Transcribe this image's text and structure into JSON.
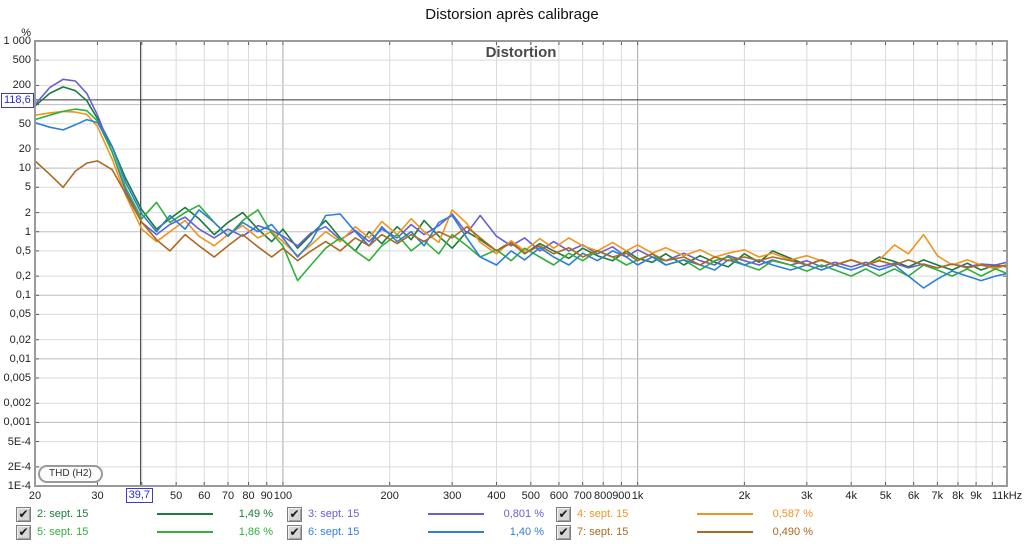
{
  "page": {
    "title": "Distorsion après calibrage"
  },
  "icons": {
    "checkmark": "✔"
  },
  "colors": {
    "grid_minor": "#dadada",
    "grid_major_x": "#a8a8a8",
    "grid_major_y": "#bdbdbd",
    "frame": "#9a9a9a",
    "crosshair": "#3a3a3a",
    "tick_stub": "#5a5a5a",
    "marker_blue": "#2a2ad4"
  },
  "chart_data": {
    "type": "line",
    "title": "Distortion",
    "y_unit": "%",
    "x_scale": "log",
    "y_scale": "log",
    "xlim": [
      20,
      11000
    ],
    "ylim": [
      0.0001,
      1000
    ],
    "grid": true,
    "legend_position": "bottom",
    "measurement_type_badge": "THD (H2)",
    "cursor": {
      "freq": 39.7,
      "freq_label": "39,7",
      "percent": 118.6,
      "percent_label": "118,6"
    },
    "x_ticks": [
      {
        "f": 20,
        "label": "20"
      },
      {
        "f": 30,
        "label": "30"
      },
      {
        "f": 40,
        "label": ""
      },
      {
        "f": 50,
        "label": "50"
      },
      {
        "f": 60,
        "label": "60"
      },
      {
        "f": 70,
        "label": "70"
      },
      {
        "f": 80,
        "label": "80"
      },
      {
        "f": 90,
        "label": "90"
      },
      {
        "f": 100,
        "label": "100"
      },
      {
        "f": 200,
        "label": "200"
      },
      {
        "f": 300,
        "label": "300"
      },
      {
        "f": 400,
        "label": "400"
      },
      {
        "f": 500,
        "label": "500"
      },
      {
        "f": 600,
        "label": "600"
      },
      {
        "f": 700,
        "label": "700"
      },
      {
        "f": 800,
        "label": "800"
      },
      {
        "f": 900,
        "label": "900"
      },
      {
        "f": 1000,
        "label": "1k"
      },
      {
        "f": 2000,
        "label": "2k"
      },
      {
        "f": 3000,
        "label": "3k"
      },
      {
        "f": 4000,
        "label": "4k"
      },
      {
        "f": 5000,
        "label": "5k"
      },
      {
        "f": 6000,
        "label": "6k"
      },
      {
        "f": 7000,
        "label": "7k"
      },
      {
        "f": 8000,
        "label": "8k"
      },
      {
        "f": 9000,
        "label": "9k"
      },
      {
        "f": 10000,
        "label": ""
      },
      {
        "f": 11000,
        "label": "11kHz"
      }
    ],
    "y_ticks": [
      {
        "v": 1000,
        "label": "1 000"
      },
      {
        "v": 500,
        "label": "500"
      },
      {
        "v": 200,
        "label": "200"
      },
      {
        "v": 100,
        "label": "100"
      },
      {
        "v": 50,
        "label": "50"
      },
      {
        "v": 20,
        "label": "20"
      },
      {
        "v": 10,
        "label": "10"
      },
      {
        "v": 5,
        "label": "5"
      },
      {
        "v": 2,
        "label": "2"
      },
      {
        "v": 1,
        "label": "1"
      },
      {
        "v": 0.5,
        "label": "0,5"
      },
      {
        "v": 0.2,
        "label": "0,2"
      },
      {
        "v": 0.1,
        "label": "0,1"
      },
      {
        "v": 0.05,
        "label": "0,05"
      },
      {
        "v": 0.02,
        "label": "0,02"
      },
      {
        "v": 0.01,
        "label": "0,01"
      },
      {
        "v": 0.005,
        "label": "0,005"
      },
      {
        "v": 0.002,
        "label": "0,002"
      },
      {
        "v": 0.001,
        "label": "0,001"
      },
      {
        "v": 0.0005,
        "label": "5E-4"
      },
      {
        "v": 0.0002,
        "label": "2E-4"
      },
      {
        "v": 0.0001,
        "label": "1E-4"
      }
    ],
    "x": [
      20,
      22,
      24,
      26,
      28,
      30,
      33,
      36,
      40,
      44,
      48,
      53,
      58,
      64,
      70,
      77,
      85,
      93,
      100,
      110,
      120,
      132,
      145,
      160,
      175,
      190,
      210,
      230,
      250,
      275,
      300,
      330,
      360,
      400,
      440,
      480,
      530,
      580,
      640,
      700,
      770,
      850,
      930,
      1000,
      1100,
      1200,
      1350,
      1500,
      1650,
      1800,
      2000,
      2200,
      2400,
      2700,
      3000,
      3300,
      3600,
      4000,
      4400,
      4800,
      5300,
      5800,
      6400,
      7000,
      7700,
      8500,
      9300,
      10200,
      11000
    ],
    "series": [
      {
        "name": "2: sept. 15",
        "thd": "1,49 %",
        "color": "#1c7c3a",
        "checked": true,
        "values": [
          95,
          150,
          190,
          165,
          115,
          60,
          22,
          7,
          2.2,
          1.1,
          1.6,
          2.4,
          1.6,
          0.9,
          1.4,
          2.0,
          1.1,
          0.7,
          1.1,
          0.55,
          0.9,
          1.5,
          0.8,
          0.5,
          1.0,
          0.65,
          1.2,
          0.75,
          1.5,
          0.85,
          0.55,
          1.0,
          0.75,
          0.5,
          0.7,
          0.45,
          0.65,
          0.5,
          0.38,
          0.55,
          0.42,
          0.35,
          0.5,
          0.38,
          0.33,
          0.45,
          0.3,
          0.42,
          0.33,
          0.28,
          0.45,
          0.33,
          0.5,
          0.38,
          0.3,
          0.36,
          0.3,
          0.36,
          0.3,
          0.4,
          0.34,
          0.28,
          0.36,
          0.3,
          0.25,
          0.32,
          0.25,
          0.3,
          0.28
        ]
      },
      {
        "name": "3: sept. 15",
        "thd": "0,801 %",
        "color": "#6a5fd0",
        "checked": true,
        "values": [
          100,
          185,
          250,
          235,
          150,
          68,
          18,
          4.5,
          1.4,
          0.9,
          1.3,
          1.7,
          1.1,
          0.8,
          1.1,
          0.85,
          1.25,
          1.05,
          0.85,
          0.6,
          0.95,
          1.2,
          0.75,
          1.05,
          0.7,
          1.1,
          0.8,
          1.3,
          0.9,
          1.25,
          1.9,
          0.95,
          1.8,
          0.85,
          0.6,
          0.8,
          0.5,
          0.7,
          0.5,
          0.62,
          0.45,
          0.58,
          0.4,
          0.52,
          0.4,
          0.35,
          0.46,
          0.35,
          0.3,
          0.42,
          0.35,
          0.3,
          0.36,
          0.3,
          0.35,
          0.28,
          0.33,
          0.28,
          0.33,
          0.28,
          0.32,
          0.27,
          0.31,
          0.27,
          0.31,
          0.28,
          0.31,
          0.3,
          0.33
        ]
      },
      {
        "name": "4: sept. 15",
        "thd": "0,587 %",
        "color": "#f0941f",
        "checked": true,
        "values": [
          68,
          74,
          78,
          76,
          70,
          45,
          14,
          3.8,
          1.1,
          0.7,
          1.0,
          1.5,
          0.85,
          0.6,
          0.9,
          1.25,
          0.8,
          1.0,
          0.7,
          0.42,
          0.62,
          1.0,
          0.7,
          1.2,
          0.8,
          1.45,
          0.9,
          1.6,
          1.0,
          0.68,
          2.2,
          1.35,
          0.68,
          0.45,
          0.72,
          0.5,
          0.78,
          0.55,
          0.8,
          0.6,
          0.5,
          0.68,
          0.5,
          0.62,
          0.46,
          0.56,
          0.42,
          0.52,
          0.4,
          0.46,
          0.52,
          0.4,
          0.46,
          0.36,
          0.42,
          0.35,
          0.3,
          0.36,
          0.3,
          0.36,
          0.62,
          0.45,
          0.9,
          0.42,
          0.3,
          0.36,
          0.3,
          0.26,
          0.3
        ]
      },
      {
        "name": "5: sept. 15",
        "thd": "1,86 %",
        "color": "#2fb13a",
        "checked": true,
        "values": [
          58,
          68,
          78,
          85,
          80,
          55,
          18,
          5,
          1.6,
          2.9,
          1.4,
          2.0,
          2.6,
          1.4,
          0.85,
          1.5,
          2.2,
          0.95,
          0.6,
          0.17,
          0.3,
          0.55,
          0.8,
          0.5,
          0.35,
          0.6,
          0.9,
          0.5,
          0.72,
          0.45,
          0.9,
          0.6,
          0.4,
          0.52,
          0.35,
          0.55,
          0.4,
          0.3,
          0.46,
          0.35,
          0.5,
          0.4,
          0.3,
          0.36,
          0.45,
          0.3,
          0.36,
          0.25,
          0.35,
          0.4,
          0.3,
          0.25,
          0.35,
          0.3,
          0.24,
          0.3,
          0.25,
          0.2,
          0.26,
          0.2,
          0.26,
          0.2,
          0.3,
          0.25,
          0.2,
          0.26,
          0.2,
          0.26,
          0.22
        ]
      },
      {
        "name": "6: sept. 15",
        "thd": "1,40 %",
        "color": "#2e7fd6",
        "checked": true,
        "values": [
          52,
          44,
          40,
          48,
          58,
          52,
          22,
          6,
          1.9,
          1.0,
          1.8,
          1.1,
          2.2,
          1.4,
          0.85,
          1.4,
          1.0,
          1.3,
          0.8,
          0.4,
          0.7,
          1.8,
          1.9,
          1.0,
          0.6,
          1.2,
          0.7,
          1.0,
          0.6,
          1.4,
          1.8,
          0.8,
          0.4,
          0.3,
          0.5,
          0.36,
          0.56,
          0.4,
          0.3,
          0.46,
          0.35,
          0.5,
          0.4,
          0.3,
          0.4,
          0.3,
          0.36,
          0.3,
          0.25,
          0.36,
          0.3,
          0.36,
          0.3,
          0.25,
          0.3,
          0.25,
          0.3,
          0.25,
          0.3,
          0.25,
          0.3,
          0.2,
          0.13,
          0.18,
          0.24,
          0.2,
          0.17,
          0.2,
          0.22
        ]
      },
      {
        "name": "7: sept. 15",
        "thd": "0,490 %",
        "color": "#ab6a22",
        "checked": true,
        "values": [
          13,
          8,
          5,
          9,
          12,
          13,
          9.5,
          4,
          1.4,
          0.75,
          0.5,
          0.9,
          0.6,
          0.4,
          0.6,
          0.9,
          0.58,
          0.4,
          0.55,
          0.35,
          0.5,
          0.7,
          0.5,
          0.8,
          0.6,
          0.9,
          0.65,
          0.9,
          0.7,
          1.0,
          0.8,
          1.2,
          0.8,
          0.5,
          0.66,
          0.46,
          0.6,
          0.45,
          0.56,
          0.4,
          0.5,
          0.4,
          0.46,
          0.35,
          0.45,
          0.35,
          0.4,
          0.3,
          0.4,
          0.35,
          0.4,
          0.35,
          0.4,
          0.35,
          0.3,
          0.36,
          0.3,
          0.36,
          0.3,
          0.35,
          0.3,
          0.36,
          0.3,
          0.27,
          0.31,
          0.27,
          0.3,
          0.28,
          0.3
        ]
      }
    ]
  }
}
